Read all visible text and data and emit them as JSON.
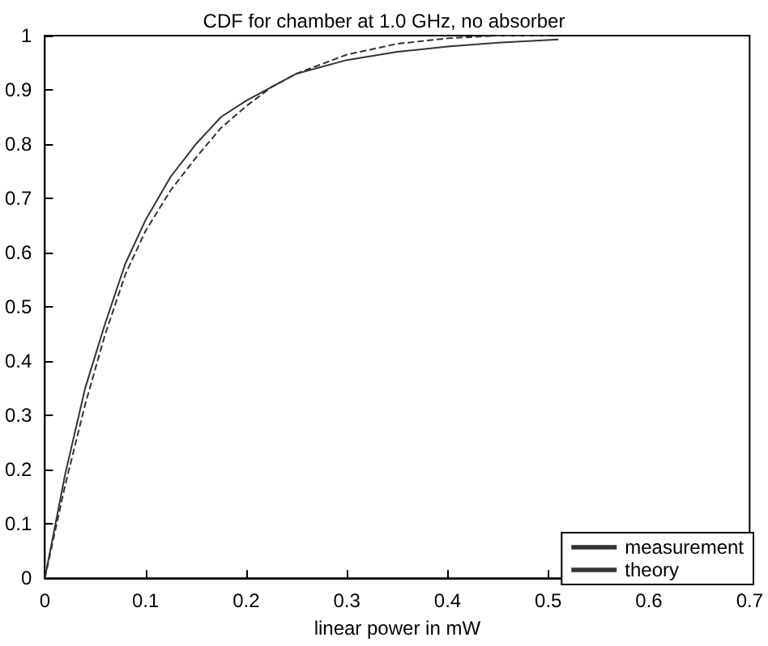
{
  "chart_data": {
    "type": "line",
    "title": "CDF for chamber at 1.0 GHz, no absorber",
    "xlabel": "linear power in mW",
    "x": [
      0,
      0.02,
      0.04,
      0.06,
      0.08,
      0.1,
      0.125,
      0.15,
      0.175,
      0.2,
      0.225,
      0.25,
      0.3,
      0.35,
      0.4,
      0.45,
      0.5
    ],
    "series": [
      {
        "name": "measurement",
        "color": "#333333",
        "line_style": "dashed",
        "values": [
          0,
          0.17,
          0.32,
          0.45,
          0.56,
          0.64,
          0.715,
          0.775,
          0.83,
          0.87,
          0.905,
          0.93,
          0.965,
          0.985,
          0.995,
          1,
          1
        ]
      },
      {
        "name": "theory",
        "color": "#333333",
        "line_style": "solid",
        "x": [
          0,
          0.02,
          0.04,
          0.06,
          0.08,
          0.1,
          0.125,
          0.15,
          0.175,
          0.2,
          0.25,
          0.3,
          0.35,
          0.4,
          0.45,
          0.51
        ],
        "values": [
          0,
          0.19,
          0.35,
          0.47,
          0.58,
          0.66,
          0.74,
          0.8,
          0.85,
          0.88,
          0.93,
          0.955,
          0.97,
          0.98,
          0.987,
          0.993
        ]
      }
    ],
    "xlim": [
      0,
      0.7
    ],
    "xticks": [
      0,
      0.1,
      0.2,
      0.3,
      0.4,
      0.5,
      0.6,
      0.7
    ],
    "ylim": [
      0,
      1
    ],
    "yticks": [
      0,
      0.1,
      0.2,
      0.3,
      0.4,
      0.5,
      0.6,
      0.7,
      0.8,
      0.9,
      1
    ],
    "grid": false,
    "legend": "bottom right",
    "marker": "none"
  }
}
